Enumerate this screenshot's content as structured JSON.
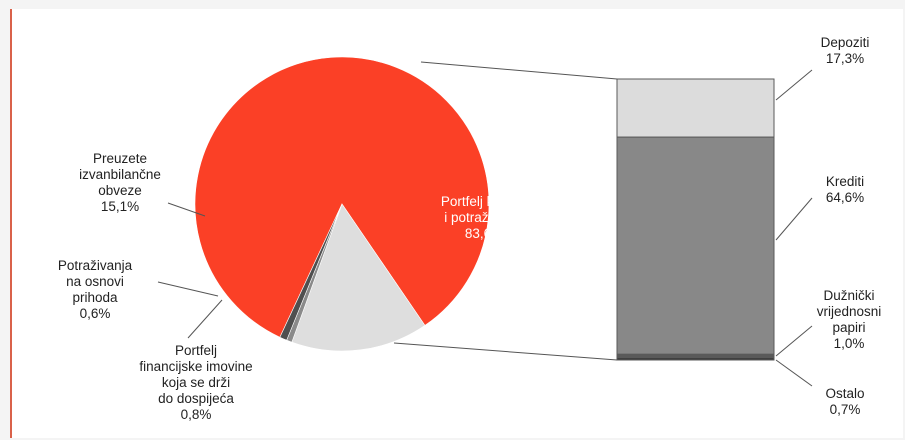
{
  "chart_data": [
    {
      "type": "pie",
      "slices": [
        {
          "label": [
            "Portfelj kredita",
            "i potraživanja",
            "83,6%"
          ],
          "value": 83.6,
          "color": "#fb4026"
        },
        {
          "label": [
            "Preuzete",
            "izvanbilančne",
            "obveze",
            "15,1%"
          ],
          "value": 15.1,
          "color": "#dedede"
        },
        {
          "label": [
            "Potraživanja",
            "na osnovi",
            "prihoda",
            "0,6%"
          ],
          "value": 0.6,
          "color": "#8a8a8a"
        },
        {
          "label": [
            "Portfelj",
            "financijske imovine",
            "koja se drži",
            "do dospijeća",
            "0,8%"
          ],
          "value": 0.8,
          "color": "#4f4f4f"
        }
      ]
    },
    {
      "type": "bar",
      "stacked": true,
      "breakdown_of": "Portfelj kredita i potraživanja",
      "segments": [
        {
          "label": [
            "Depoziti",
            "17,3%"
          ],
          "value": 17.3,
          "color": "#dcdcdc"
        },
        {
          "label": [
            "Krediti",
            "64,6%"
          ],
          "value": 64.6,
          "color": "#888888"
        },
        {
          "label": [
            "Dužnički",
            "vrijednosni",
            "papiri",
            "1,0%"
          ],
          "value": 1.0,
          "color": "#5a5a5a"
        },
        {
          "label": [
            "Ostalo",
            "0,7%"
          ],
          "value": 0.7,
          "color": "#3c3c3c"
        }
      ]
    }
  ]
}
